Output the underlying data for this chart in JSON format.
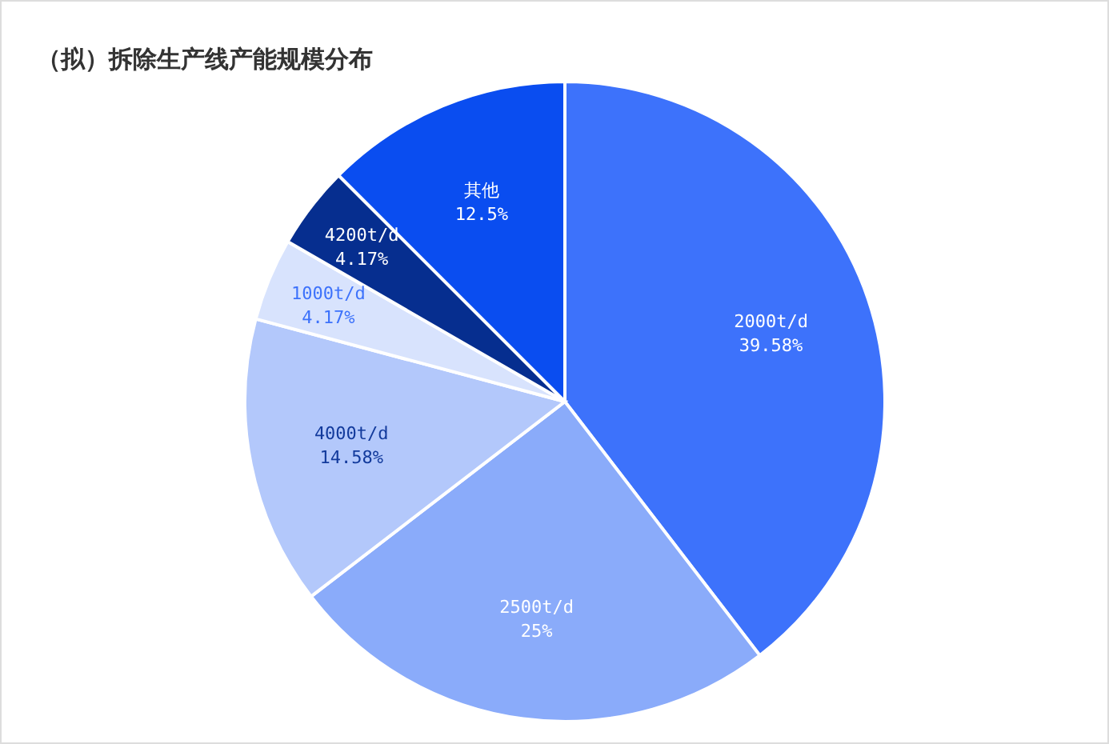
{
  "chart_data": {
    "type": "pie",
    "title": "（拟）拆除生产线产能规模分布",
    "categories": [
      "2000t/d",
      "2500t/d",
      "4000t/d",
      "1000t/d",
      "4200t/d",
      "其他"
    ],
    "values": [
      39.58,
      25,
      14.58,
      4.17,
      4.17,
      12.5
    ],
    "colors": [
      "#3d72fb",
      "#8aabfa",
      "#b3c8fb",
      "#d8e3fd",
      "#062e8f",
      "#0a4df0"
    ],
    "value_labels": [
      "39.58%",
      "25%",
      "14.58%",
      "4.17%",
      "4.17%",
      "12.5%"
    ],
    "legend": false
  }
}
